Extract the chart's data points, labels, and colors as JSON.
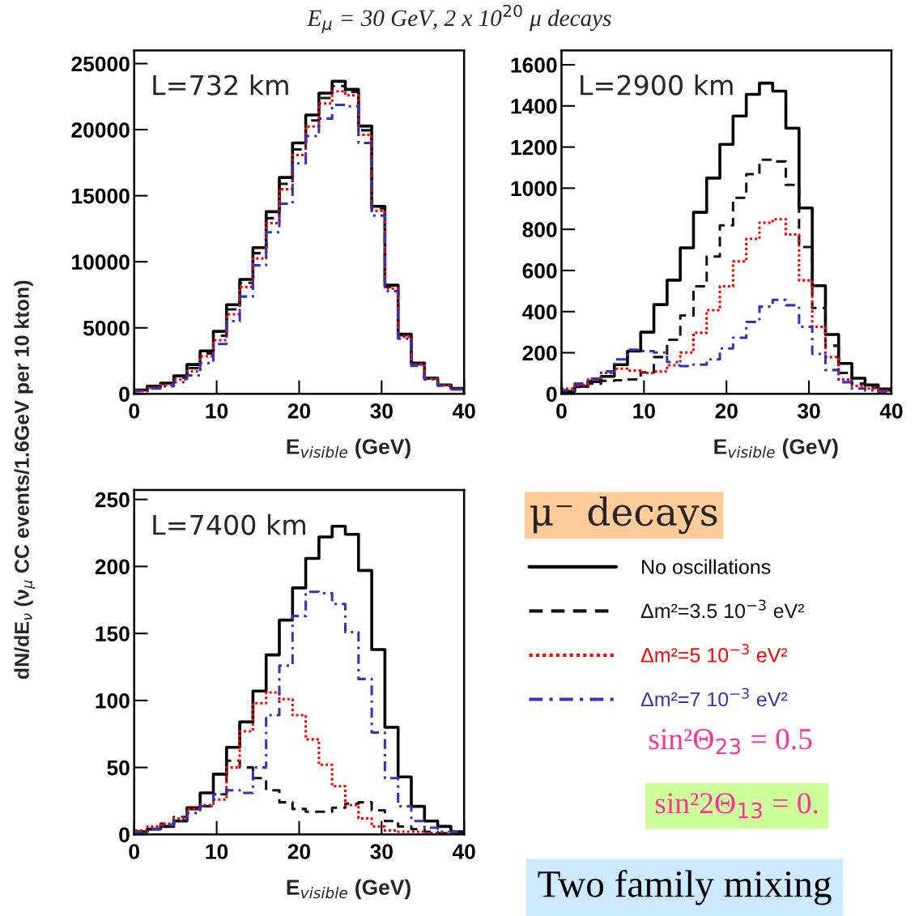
{
  "chart_data": [
    {
      "type": "histogram",
      "title": "E$_{μ}$ = 30 GeV, 2 x 10$^{20}$ μ decays",
      "xlabel": "E$_{visible}$ (GeV)",
      "ylabel": "dN/dE$_{ν}$ (ν$_{μ}$ CC events/1.6GeV per 10 kton)",
      "annotations": [
        "L=732 km"
      ],
      "bins": [
        0,
        1.6,
        3.2,
        4.8,
        6.4,
        8,
        9.6,
        11.2,
        12.8,
        14.4,
        16,
        17.6,
        19.2,
        20.8,
        22.4,
        24,
        25.6,
        27.2,
        28.8,
        30.4,
        32,
        33.6,
        35.2,
        36.8,
        38.4,
        40
      ],
      "xlim": [
        0,
        40
      ],
      "xticks": [
        0,
        10,
        20,
        30,
        40
      ],
      "ylim": [
        0,
        26000
      ],
      "yticks": [
        0,
        5000,
        10000,
        15000,
        20000,
        25000
      ],
      "series": [
        {
          "color": "#000000",
          "line_style": "solid",
          "values": [
            300,
            580,
            820,
            1360,
            2220,
            3250,
            4730,
            6750,
            8660,
            11070,
            13790,
            16380,
            18990,
            21110,
            22760,
            23660,
            23050,
            20270,
            14200,
            8230,
            4530,
            2330,
            1190,
            680,
            410
          ]
        },
        {
          "color": "#141414",
          "line_style": "dashed",
          "values": [
            250,
            520,
            750,
            1220,
            1950,
            3050,
            4400,
            6400,
            8400,
            10650,
            13300,
            15900,
            18500,
            20700,
            22400,
            23300,
            22850,
            19950,
            14050,
            8100,
            4430,
            2280,
            1170,
            660,
            390
          ]
        },
        {
          "color": "#ff0000",
          "line_style": "dotted",
          "values": [
            200,
            470,
            680,
            1090,
            1710,
            2840,
            4070,
            6030,
            8090,
            10250,
            12920,
            15490,
            18070,
            20230,
            21980,
            22900,
            22590,
            19610,
            13850,
            7980,
            4320,
            2220,
            1150,
            640,
            370
          ]
        },
        {
          "color": "#3333bb",
          "line_style": "dashdot",
          "values": [
            200,
            410,
            580,
            880,
            1400,
            2330,
            3770,
            5510,
            7370,
            9730,
            12240,
            14400,
            17450,
            19510,
            20840,
            21870,
            21770,
            18990,
            13500,
            7780,
            4180,
            2120,
            1090,
            620,
            330
          ]
        }
      ]
    },
    {
      "type": "histogram",
      "xlabel": "E$_{visible}$ (GeV)",
      "annotations": [
        "L=2900 km"
      ],
      "bins": [
        0,
        1.6,
        3.2,
        4.8,
        6.4,
        8,
        9.6,
        11.2,
        12.8,
        14.4,
        16,
        17.6,
        19.2,
        20.8,
        22.4,
        24,
        25.6,
        27.2,
        28.8,
        30.4,
        32,
        33.6,
        35.2,
        36.8,
        38.4,
        40
      ],
      "xlim": [
        0,
        40
      ],
      "xticks": [
        0,
        10,
        20,
        30,
        40
      ],
      "ylim": [
        0,
        1670
      ],
      "yticks": [
        0,
        200,
        400,
        600,
        800,
        1000,
        1200,
        1400,
        1600
      ],
      "series": [
        {
          "color": "#000000",
          "line_style": "solid",
          "values": [
            12,
            37,
            60,
            85,
            142,
            208,
            300,
            434,
            553,
            710,
            883,
            1049,
            1213,
            1351,
            1456,
            1511,
            1472,
            1292,
            904,
            526,
            289,
            148,
            76,
            43,
            24
          ]
        },
        {
          "color": "#141414",
          "line_style": "dashed",
          "values": [
            17,
            34,
            50,
            63,
            66,
            70,
            105,
            179,
            263,
            381,
            523,
            668,
            819,
            953,
            1068,
            1138,
            1130,
            1016,
            714,
            418,
            234,
            102,
            50,
            30,
            17
          ]
        },
        {
          "color": "#ff0000",
          "line_style": "dotted",
          "values": [
            26,
            43,
            70,
            102,
            122,
            113,
            102,
            109,
            139,
            201,
            297,
            407,
            523,
            644,
            753,
            832,
            849,
            775,
            552,
            326,
            179,
            70,
            39,
            26,
            17
          ]
        },
        {
          "color": "#3333bb",
          "line_style": "dashdot",
          "values": [
            17,
            50,
            74,
            109,
            168,
            215,
            208,
            201,
            155,
            135,
            142,
            168,
            221,
            273,
            350,
            424,
            457,
            431,
            326,
            194,
            116,
            57,
            26,
            17,
            10
          ]
        }
      ]
    },
    {
      "type": "histogram",
      "xlabel": "E$_{visible}$ (GeV)",
      "legend": "right",
      "legend_title": "μ⁻ decays",
      "annotations": [
        "L=7400 km",
        "sin²Θ$_{23}$ = 0.5",
        "sin²2Θ$_{13}$ = 0.",
        "Two family mixing"
      ],
      "bins": [
        0,
        1.6,
        3.2,
        4.8,
        6.4,
        8,
        9.6,
        11.2,
        12.8,
        14.4,
        16,
        17.6,
        19.2,
        20.8,
        22.4,
        24,
        25.6,
        27.2,
        28.8,
        30.4,
        32,
        33.6,
        35.2,
        36.8,
        38.4,
        40
      ],
      "xlim": [
        0,
        40
      ],
      "xticks": [
        0,
        10,
        20,
        30,
        40
      ],
      "ylim": [
        0,
        257
      ],
      "yticks": [
        0,
        50,
        100,
        150,
        200,
        250
      ],
      "series": [
        {
          "name": "No oscillations",
          "color": "#000000",
          "line_style": "solid",
          "values": [
            2,
            4,
            6,
            10,
            20,
            31,
            45,
            65,
            84,
            107,
            134,
            160,
            184,
            206,
            222,
            230,
            224,
            197,
            138,
            80,
            43,
            21,
            10,
            6,
            2
          ]
        },
        {
          "name": "Δm²=3.5 10$^{−3}$ eV²",
          "color": "#141414",
          "line_style": "dashed",
          "values": [
            2,
            4,
            8,
            13,
            19,
            21,
            30,
            55,
            50,
            42,
            33,
            24,
            19,
            17,
            17,
            20,
            23,
            24,
            18,
            10,
            6,
            4,
            2,
            1,
            1
          ]
        },
        {
          "name": "Δm²=5 10$^{−3}$ eV²",
          "color": "#ff0000",
          "line_style": "dotted",
          "values": [
            3,
            6,
            8,
            12,
            19,
            22,
            26,
            50,
            77,
            98,
            106,
            101,
            89,
            71,
            52,
            36,
            22,
            12,
            6,
            3,
            2,
            2,
            1,
            1,
            0
          ]
        },
        {
          "name": "Δm²=7 10$^{−3}$ eV²",
          "color": "#3333bb",
          "line_style": "dashdot",
          "values": [
            2,
            4,
            7,
            10,
            16,
            21,
            30,
            33,
            31,
            50,
            89,
            126,
            163,
            181,
            180,
            172,
            151,
            116,
            76,
            42,
            21,
            10,
            5,
            2,
            2
          ]
        }
      ]
    }
  ]
}
